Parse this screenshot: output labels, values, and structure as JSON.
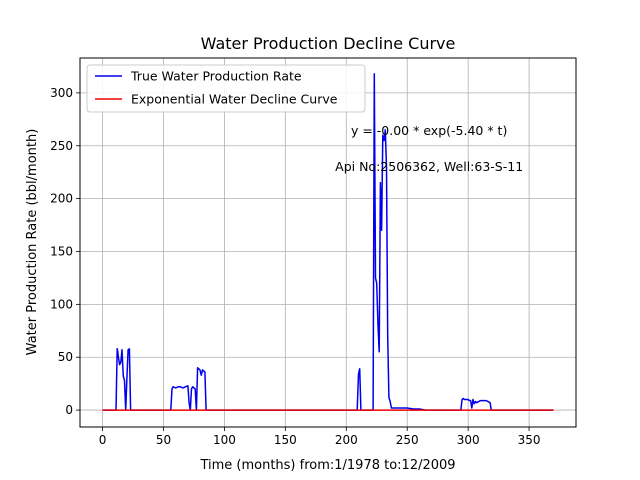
{
  "chart_data": {
    "type": "line",
    "title": "Water Production Decline Curve",
    "xlabel": "Time (months) from:1/1978 to:12/2009",
    "ylabel": "Water Production Rate (bbl/month)",
    "xlim": [
      -18.5,
      388.5
    ],
    "ylim": [
      -16,
      333
    ],
    "xticks": [
      0,
      50,
      100,
      150,
      200,
      250,
      300,
      350
    ],
    "yticks": [
      0,
      50,
      100,
      150,
      200,
      250,
      300
    ],
    "grid": true,
    "legend_position": "top-left",
    "annotations": [
      {
        "text": "y = -0.00 * exp(-5.40 * t)",
        "x": 268,
        "y": 260
      },
      {
        "text": "Api No:2506362, Well:63-S-11",
        "x": 268,
        "y": 226
      }
    ],
    "series": [
      {
        "name": "True Water Production Rate",
        "color": "#0000ee",
        "x": [
          0,
          10,
          11,
          12,
          12.5,
          13,
          14,
          15,
          16,
          17,
          18,
          19,
          20,
          21,
          22,
          23,
          24,
          25,
          55,
          56,
          57,
          58,
          60,
          62,
          64,
          66,
          68,
          70,
          71,
          72,
          73,
          74,
          75,
          76,
          77,
          78,
          79,
          80,
          81,
          82,
          83,
          84,
          85,
          86,
          87,
          88,
          89,
          90,
          91,
          92,
          208,
          209,
          210,
          211,
          212,
          221,
          222,
          223,
          224,
          225,
          226,
          227,
          228,
          229,
          230,
          231,
          232,
          233,
          234,
          235,
          236,
          237,
          238,
          240,
          245,
          250,
          255,
          260,
          265,
          270,
          275,
          280,
          285,
          290,
          293,
          294,
          295,
          296,
          297,
          298,
          300,
          301,
          302,
          303,
          304,
          305,
          306,
          307,
          310,
          315,
          318,
          319,
          320,
          321,
          330,
          340,
          350,
          360,
          370
        ],
        "y": [
          0,
          0,
          0,
          58,
          55,
          50,
          43,
          45,
          57,
          32,
          28,
          0,
          30,
          57,
          58,
          0,
          0,
          0,
          0,
          0,
          20,
          22,
          21,
          22,
          22,
          21,
          22,
          23,
          7,
          0,
          20,
          22,
          21,
          20,
          0,
          40,
          39,
          38,
          33,
          38,
          37,
          36,
          0,
          0,
          0,
          0,
          0,
          0,
          0,
          0,
          0,
          0,
          34,
          39,
          0,
          0,
          0,
          318,
          125,
          120,
          80,
          55,
          215,
          170,
          260,
          255,
          265,
          230,
          70,
          12,
          8,
          2,
          2,
          2,
          2,
          2,
          1,
          1,
          0,
          0,
          0,
          0,
          0,
          0,
          0,
          0,
          10,
          11,
          10,
          10,
          10,
          9,
          9,
          2,
          10,
          6,
          8,
          7,
          9,
          9,
          7,
          0,
          0,
          0,
          0,
          0,
          0,
          0,
          0
        ]
      },
      {
        "name": "Exponential Water Decline Curve",
        "color": "#ee0000",
        "x": [
          0,
          370
        ],
        "y": [
          0,
          0
        ]
      }
    ]
  }
}
